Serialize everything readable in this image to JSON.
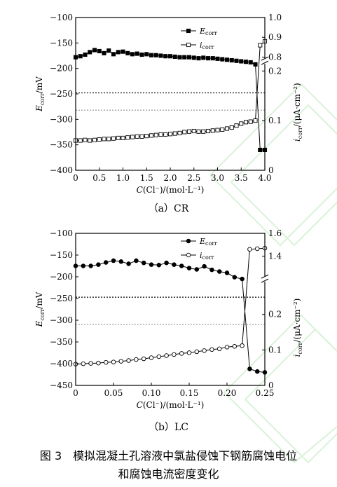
{
  "chart_data": [
    {
      "type": "line",
      "panel_caption": "（a）CR",
      "xlabel_main": "C",
      "xlabel_rest": "(Cl⁻)/(mol·L⁻¹)",
      "ylabel_left_main": "E",
      "ylabel_left_sub": "corr",
      "ylabel_left_unit": "/mV",
      "ylabel_right_main": "i",
      "ylabel_right_sub": "corr",
      "ylabel_right_unit": "/(μA·cm⁻²)",
      "xlim": [
        0,
        4.0
      ],
      "xticks": [
        0,
        0.5,
        1.0,
        1.5,
        2.0,
        2.5,
        3.0,
        3.5,
        4.0
      ],
      "xtick_labels": [
        "0",
        "0.5",
        "1.0",
        "1.5",
        "2.0",
        "2.5",
        "3.0",
        "3.5",
        "4.0"
      ],
      "ylim_left": [
        -400,
        -100
      ],
      "yticks_left": [
        -400,
        -350,
        -300,
        -250,
        -200,
        -150,
        -100
      ],
      "right_axis_broken": true,
      "right_lower_range": [
        0,
        0.22
      ],
      "right_upper_range": [
        0.78,
        1.0
      ],
      "right_break_value": 0.5,
      "right_break_ticks": [
        "//"
      ],
      "right_ticks_lower": [
        0,
        0.1,
        0.2
      ],
      "right_ticks_upper": [
        0.8,
        0.9,
        1.0
      ],
      "right_tick_labels_lower": [
        "0",
        "0.1",
        "0.2"
      ],
      "right_tick_labels_upper": [
        "0.8",
        "0.9",
        "1.0"
      ],
      "hlines_left": [
        {
          "y": -248,
          "style": "dotted",
          "color": "#000000"
        },
        {
          "y": -282,
          "style": "dotted",
          "color": "#999999"
        }
      ],
      "legend_position": "top-right",
      "series": [
        {
          "name_main": "E",
          "name_sub": "corr",
          "axis": "left",
          "marker": "square-filled",
          "x": [
            0,
            0.1,
            0.2,
            0.3,
            0.4,
            0.5,
            0.6,
            0.7,
            0.8,
            0.9,
            1.0,
            1.1,
            1.2,
            1.3,
            1.4,
            1.5,
            1.6,
            1.7,
            1.8,
            1.9,
            2.0,
            2.1,
            2.2,
            2.3,
            2.4,
            2.5,
            2.6,
            2.7,
            2.8,
            2.9,
            3.0,
            3.1,
            3.2,
            3.3,
            3.4,
            3.5,
            3.6,
            3.7,
            3.8,
            3.9,
            4.0
          ],
          "values": [
            -178,
            -176,
            -173,
            -168,
            -164,
            -166,
            -170,
            -165,
            -172,
            -168,
            -167,
            -170,
            -172,
            -171,
            -173,
            -172,
            -174,
            -174,
            -175,
            -176,
            -176,
            -177,
            -178,
            -178,
            -178,
            -179,
            -180,
            -179,
            -180,
            -180,
            -181,
            -182,
            -183,
            -184,
            -185,
            -186,
            -187,
            -188,
            -192,
            -360,
            -360
          ]
        },
        {
          "name_main": "i",
          "name_sub": "corr",
          "axis": "right",
          "marker": "square-open",
          "x": [
            0,
            0.1,
            0.2,
            0.3,
            0.4,
            0.5,
            0.6,
            0.7,
            0.8,
            0.9,
            1.0,
            1.1,
            1.2,
            1.3,
            1.4,
            1.5,
            1.6,
            1.7,
            1.8,
            1.9,
            2.0,
            2.1,
            2.2,
            2.3,
            2.4,
            2.5,
            2.6,
            2.7,
            2.8,
            2.9,
            3.0,
            3.1,
            3.2,
            3.3,
            3.4,
            3.5,
            3.6,
            3.7,
            3.8,
            3.9,
            4.0
          ],
          "values": [
            0.06,
            0.06,
            0.061,
            0.06,
            0.061,
            0.062,
            0.063,
            0.063,
            0.064,
            0.065,
            0.065,
            0.066,
            0.067,
            0.068,
            0.068,
            0.069,
            0.07,
            0.071,
            0.072,
            0.072,
            0.073,
            0.074,
            0.075,
            0.077,
            0.078,
            0.079,
            0.078,
            0.078,
            0.079,
            0.08,
            0.081,
            0.082,
            0.084,
            0.086,
            0.09,
            0.094,
            0.097,
            0.098,
            0.1,
            0.86,
            0.88
          ]
        }
      ]
    },
    {
      "type": "line",
      "panel_caption": "（b）LC",
      "xlabel_main": "C",
      "xlabel_rest": "(Cl⁻)/(mol·L⁻¹)",
      "ylabel_left_main": "E",
      "ylabel_left_sub": "corr",
      "ylabel_left_unit": "/mV",
      "ylabel_right_main": "i",
      "ylabel_right_sub": "corr",
      "ylabel_right_unit": "/(μA·cm⁻²)",
      "xlim": [
        0,
        0.25
      ],
      "xticks": [
        0,
        0.05,
        0.1,
        0.15,
        0.2,
        0.25
      ],
      "xtick_labels": [
        "0",
        "0.05",
        "0.10",
        "0.15",
        "0.20",
        "0.25"
      ],
      "ylim_left": [
        -450,
        -100
      ],
      "yticks_left": [
        -450,
        -400,
        -350,
        -300,
        -250,
        -200,
        -150,
        -100
      ],
      "right_axis_broken": true,
      "right_lower_range": [
        0,
        0.3
      ],
      "right_upper_range": [
        1.2,
        1.6
      ],
      "right_break_value": 0.75,
      "right_break_ticks": [
        "//"
      ],
      "right_ticks_lower": [
        0,
        0.1,
        0.2
      ],
      "right_ticks_upper": [
        1.4,
        1.6
      ],
      "right_tick_labels_lower": [
        "0",
        "0.1",
        "0.2"
      ],
      "right_tick_labels_upper": [
        "1.4",
        "1.6"
      ],
      "hlines_left": [
        {
          "y": -247,
          "style": "dotted",
          "color": "#000000"
        },
        {
          "y": -310,
          "style": "dotted",
          "color": "#999999"
        }
      ],
      "legend_position": "top-right",
      "series": [
        {
          "name_main": "E",
          "name_sub": "corr",
          "axis": "left",
          "marker": "circle-filled",
          "x": [
            0,
            0.01,
            0.02,
            0.03,
            0.04,
            0.05,
            0.06,
            0.07,
            0.08,
            0.09,
            0.1,
            0.11,
            0.12,
            0.13,
            0.14,
            0.15,
            0.16,
            0.17,
            0.18,
            0.19,
            0.2,
            0.21,
            0.22,
            0.23,
            0.24,
            0.25
          ],
          "values": [
            -175,
            -175,
            -175,
            -172,
            -167,
            -163,
            -165,
            -170,
            -163,
            -168,
            -172,
            -173,
            -168,
            -172,
            -175,
            -180,
            -183,
            -176,
            -184,
            -188,
            -191,
            -201,
            -205,
            -412,
            -418,
            -420
          ]
        },
        {
          "name_main": "i",
          "name_sub": "corr",
          "axis": "right",
          "marker": "circle-open",
          "x": [
            0,
            0.01,
            0.02,
            0.03,
            0.04,
            0.05,
            0.06,
            0.07,
            0.08,
            0.09,
            0.1,
            0.11,
            0.12,
            0.13,
            0.14,
            0.15,
            0.16,
            0.17,
            0.18,
            0.19,
            0.2,
            0.21,
            0.22,
            0.23,
            0.24,
            0.25
          ],
          "values": [
            0.06,
            0.061,
            0.062,
            0.063,
            0.065,
            0.066,
            0.068,
            0.07,
            0.073,
            0.075,
            0.078,
            0.081,
            0.084,
            0.087,
            0.09,
            0.092,
            0.095,
            0.098,
            0.101,
            0.103,
            0.108,
            0.11,
            0.112,
            1.46,
            1.465,
            1.47
          ]
        }
      ]
    }
  ],
  "figure_caption_line1": "图 3　模拟混凝土孔溶液中氯盐侵蚀下钢筋腐蚀电位",
  "figure_caption_line2": "和腐蚀电流密度变化"
}
